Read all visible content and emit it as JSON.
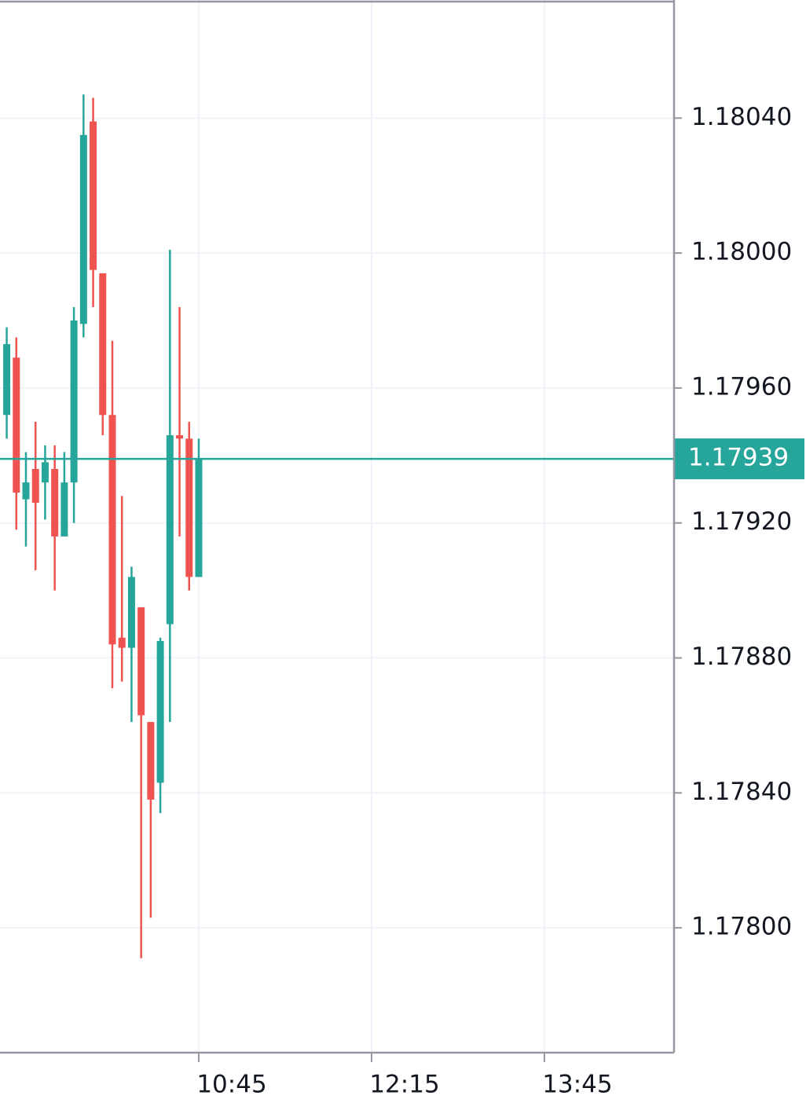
{
  "chart_data": {
    "type": "candlestick",
    "x": [
      545,
      550,
      555,
      560,
      565,
      570,
      575,
      580,
      585,
      590,
      595,
      600,
      605,
      610,
      615,
      620,
      625,
      630,
      635,
      640,
      645
    ],
    "open": [
      1.17952,
      1.17969,
      1.17927,
      1.17936,
      1.17932,
      1.17936,
      1.17916,
      1.17932,
      1.17979,
      1.18039,
      1.17994,
      1.17952,
      1.17886,
      1.17883,
      1.17895,
      1.17861,
      1.17843,
      1.1789,
      1.17946,
      1.17945,
      1.17904
    ],
    "high": [
      1.17978,
      1.17975,
      1.17941,
      1.1795,
      1.17943,
      1.17943,
      1.17941,
      1.17984,
      1.18047,
      1.18046,
      1.17994,
      1.17974,
      1.17928,
      1.17907,
      1.17895,
      1.17861,
      1.17886,
      1.18001,
      1.17984,
      1.1795,
      1.17945
    ],
    "low": [
      1.17945,
      1.17918,
      1.17913,
      1.17906,
      1.17921,
      1.179,
      1.17916,
      1.1792,
      1.17975,
      1.17984,
      1.17946,
      1.17871,
      1.17873,
      1.17861,
      1.17791,
      1.17803,
      1.17834,
      1.17861,
      1.17916,
      1.179,
      1.17904
    ],
    "close": [
      1.17973,
      1.17929,
      1.17932,
      1.17926,
      1.17938,
      1.17916,
      1.17932,
      1.1798,
      1.18035,
      1.17995,
      1.17952,
      1.17884,
      1.17883,
      1.17904,
      1.17863,
      1.17838,
      1.17885,
      1.17946,
      1.17945,
      1.17904,
      1.17939
    ],
    "up_color": "#26a69a",
    "down_color": "#ef5350",
    "last_price": 1.17939,
    "xlim": [
      541.5,
      892.5
    ],
    "xticks": [
      {
        "value": 645,
        "label": "10:45"
      },
      {
        "value": 735,
        "label": "12:15"
      },
      {
        "value": 825,
        "label": "13:45"
      }
    ],
    "ylim": [
      1.17763,
      1.18075
    ],
    "yticks": [
      {
        "value": 1.178,
        "label": "1.17800"
      },
      {
        "value": 1.1784,
        "label": "1.17840"
      },
      {
        "value": 1.1788,
        "label": "1.17880"
      },
      {
        "value": 1.1792,
        "label": "1.17920"
      },
      {
        "value": 1.1796,
        "label": "1.17960"
      },
      {
        "value": 1.18,
        "label": "1.18000"
      },
      {
        "value": 1.1804,
        "label": "1.18040"
      }
    ],
    "grid": true
  }
}
